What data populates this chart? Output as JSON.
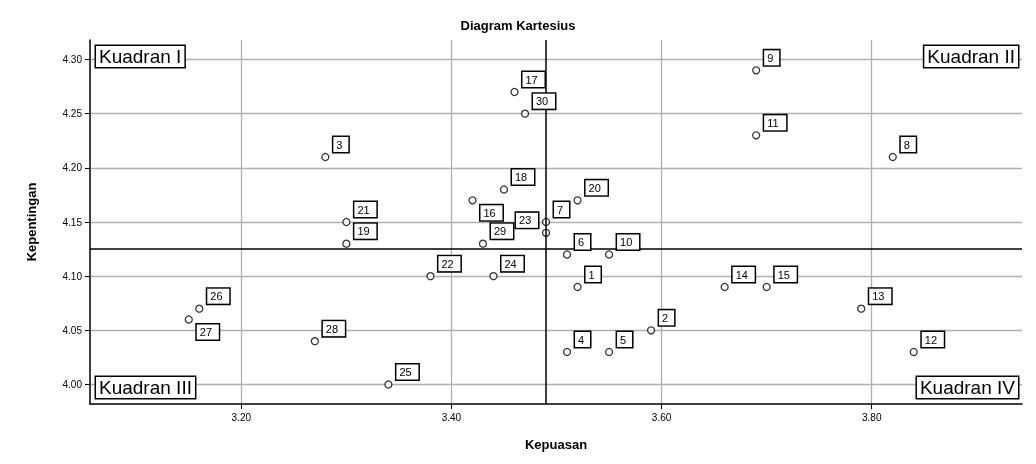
{
  "chart_data": {
    "type": "scatter",
    "title": "Diagram Kartesius",
    "xlabel": "Kepuasan",
    "ylabel": "Kepentingan",
    "x": [
      3.52,
      3.59,
      3.28,
      3.51,
      3.55,
      3.51,
      3.49,
      3.82,
      3.69,
      3.55,
      3.69,
      3.84,
      3.79,
      3.66,
      3.7,
      3.42,
      3.46,
      3.45,
      3.3,
      3.52,
      3.3,
      3.38,
      3.49,
      3.44,
      3.34,
      3.16,
      3.15,
      3.27,
      3.43,
      3.47
    ],
    "values": [
      4.09,
      4.05,
      4.21,
      4.03,
      4.03,
      4.12,
      4.15,
      4.21,
      4.29,
      4.12,
      4.23,
      4.03,
      4.07,
      4.09,
      4.09,
      4.17,
      4.27,
      4.18,
      4.13,
      4.17,
      4.15,
      4.1,
      4.14,
      4.1,
      4.0,
      4.07,
      4.06,
      4.04,
      4.13,
      4.25
    ],
    "color": "#000000",
    "marker": "circle",
    "grid": true,
    "xlim": [
      3.056,
      3.943
    ],
    "xticks": [
      {
        "value": 3.2,
        "label": "3.20"
      },
      {
        "value": 3.4,
        "label": "3.40"
      },
      {
        "value": 3.6,
        "label": "3.60"
      },
      {
        "value": 3.8,
        "label": "3.80"
      }
    ],
    "ylim": [
      3.982,
      4.318
    ],
    "yticks": [
      {
        "value": 4.0,
        "label": "4.00"
      },
      {
        "value": 4.05,
        "label": "4.05"
      },
      {
        "value": 4.1,
        "label": "4.10"
      },
      {
        "value": 4.15,
        "label": "4.15"
      },
      {
        "value": 4.2,
        "label": "4.20"
      },
      {
        "value": 4.25,
        "label": "4.25"
      },
      {
        "value": 4.3,
        "label": "4.30"
      }
    ],
    "ref_lines": [
      {
        "axis": "x",
        "value": 3.49,
        "color": "#000000"
      },
      {
        "axis": "y",
        "value": 4.125,
        "color": "#000000"
      }
    ],
    "annotations": [
      "Kuadran I",
      "Kuadran II",
      "Kuadran III",
      "Kuadran IV",
      {
        "text": "1",
        "x": 3.52,
        "y": 4.09
      },
      {
        "text": "2",
        "x": 3.59,
        "y": 4.05
      },
      {
        "text": "3",
        "x": 3.28,
        "y": 4.21
      },
      {
        "text": "4",
        "x": 3.51,
        "y": 4.03
      },
      {
        "text": "5",
        "x": 3.55,
        "y": 4.03
      },
      {
        "text": "6",
        "x": 3.51,
        "y": 4.12
      },
      {
        "text": "7",
        "x": 3.49,
        "y": 4.15
      },
      {
        "text": "8",
        "x": 3.82,
        "y": 4.21
      },
      {
        "text": "9",
        "x": 3.69,
        "y": 4.29
      },
      {
        "text": "10",
        "x": 3.55,
        "y": 4.12
      },
      {
        "text": "11",
        "x": 3.69,
        "y": 4.23
      },
      {
        "text": "12",
        "x": 3.84,
        "y": 4.03
      },
      {
        "text": "13",
        "x": 3.79,
        "y": 4.07
      },
      {
        "text": "14",
        "x": 3.66,
        "y": 4.09
      },
      {
        "text": "15",
        "x": 3.7,
        "y": 4.09
      },
      {
        "text": "16",
        "x": 3.42,
        "y": 4.17
      },
      {
        "text": "17",
        "x": 3.46,
        "y": 4.27
      },
      {
        "text": "18",
        "x": 3.45,
        "y": 4.18
      },
      {
        "text": "19",
        "x": 3.3,
        "y": 4.13
      },
      {
        "text": "20",
        "x": 3.52,
        "y": 4.17
      },
      {
        "text": "21",
        "x": 3.3,
        "y": 4.15
      },
      {
        "text": "22",
        "x": 3.38,
        "y": 4.1
      },
      {
        "text": "23",
        "x": 3.49,
        "y": 4.14
      },
      {
        "text": "24",
        "x": 3.44,
        "y": 4.1
      },
      {
        "text": "25",
        "x": 3.34,
        "y": 4.0
      },
      {
        "text": "26",
        "x": 3.16,
        "y": 4.07
      },
      {
        "text": "27",
        "x": 3.15,
        "y": 4.06
      },
      {
        "text": "28",
        "x": 3.27,
        "y": 4.04
      },
      {
        "text": "29",
        "x": 3.43,
        "y": 4.13
      },
      {
        "text": "30",
        "x": 3.47,
        "y": 4.25
      }
    ]
  }
}
